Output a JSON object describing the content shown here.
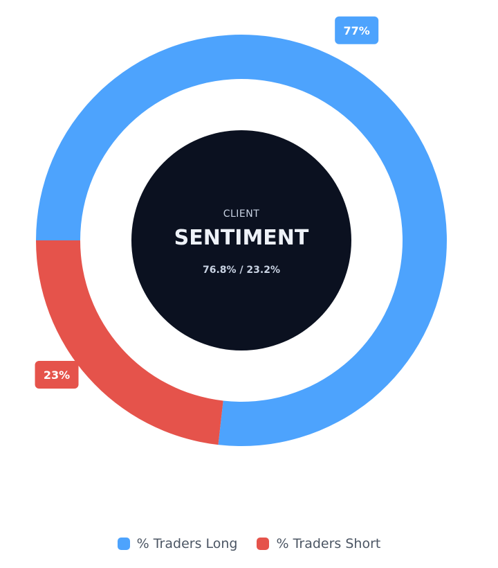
{
  "chart_data": {
    "type": "pie",
    "categories": [
      "% Traders Long",
      "% Traders Short"
    ],
    "values": [
      76.8,
      23.2
    ],
    "colors": [
      "#4da3fd",
      "#e5534b"
    ],
    "data_labels": [
      "77%",
      "23%"
    ],
    "legend_position": "bottom",
    "center": {
      "subtitle": "CLIENT",
      "title": "SENTIMENT",
      "ratio": "76.8% / 23.2%",
      "background": "#0b1120"
    }
  },
  "legend": {
    "items": [
      {
        "label": "% Traders Long",
        "color": "#4da3fd"
      },
      {
        "label": "% Traders Short",
        "color": "#e5534b"
      }
    ]
  }
}
